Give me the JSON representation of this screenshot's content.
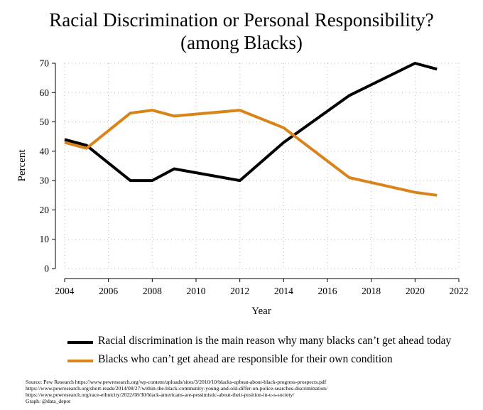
{
  "title_line1": "Racial Discrimination or Personal Responsibility?",
  "title_line2": "(among Blacks)",
  "chart_data": {
    "type": "line",
    "xlabel": "Year",
    "ylabel": "Percent",
    "xlim": [
      2004,
      2022
    ],
    "ylim": [
      0,
      70
    ],
    "xticks": [
      2004,
      2006,
      2008,
      2010,
      2012,
      2014,
      2016,
      2018,
      2020,
      2022
    ],
    "yticks": [
      0,
      10,
      20,
      30,
      40,
      50,
      60,
      70
    ],
    "grid": "dotted",
    "series": [
      {
        "name": "Racial discrimination is the main reason why many blacks can’t get ahead today",
        "color": "#000000",
        "x": [
          2004,
          2005,
          2007,
          2008,
          2009,
          2012,
          2014,
          2017,
          2020,
          2021
        ],
        "y": [
          44,
          42,
          30,
          30,
          34,
          30,
          43,
          59,
          70,
          68
        ]
      },
      {
        "name": "Blacks who can’t get ahead are responsible for their own condition",
        "color": "#d98319",
        "x": [
          2004,
          2005,
          2007,
          2008,
          2009,
          2012,
          2014,
          2017,
          2020,
          2021
        ],
        "y": [
          43,
          41,
          53,
          54,
          52,
          54,
          48,
          31,
          26,
          25
        ]
      }
    ]
  },
  "source": [
    "Source: Pew Research https://www.pewresearch.org/wp-content/uploads/sites/3/2010/10/blacks-upbeat-about-black-progress-prospects.pdf",
    "https://www.pewresearch.org/short-reads/2014/08/27/within-the-black-community-young-and-old-differ-on-police-searches-discrimination/",
    "https://www.pewresearch.org/race-ethnicity/2022/08/30/black-americans-are-pessimistic-about-their-position-in-u-s-society/",
    "Graph: @data_depot"
  ]
}
